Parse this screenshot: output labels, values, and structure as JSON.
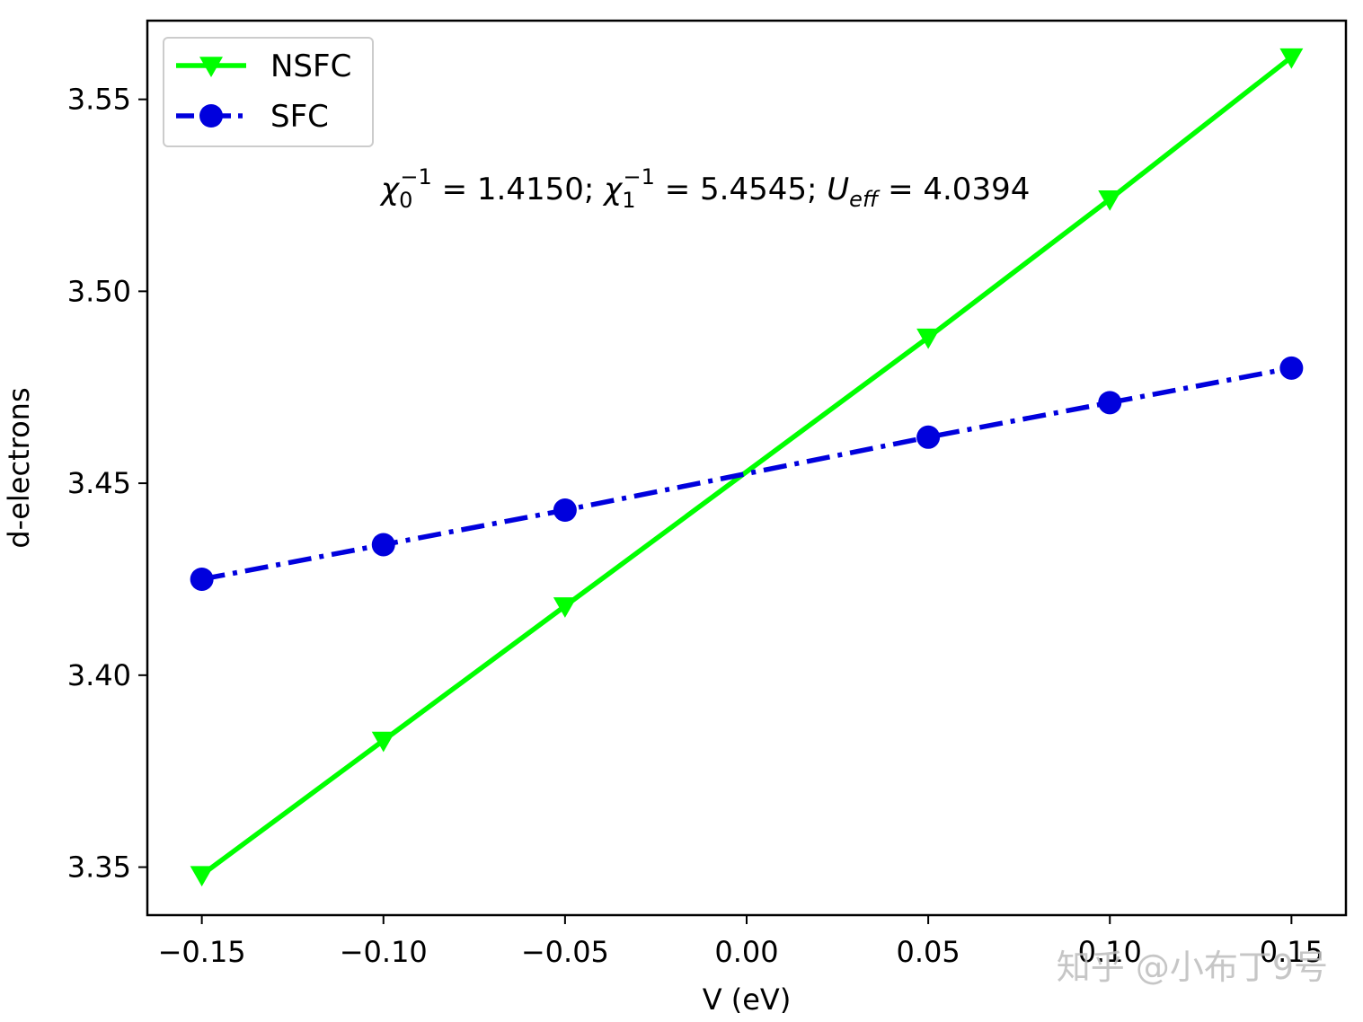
{
  "chart_data": {
    "type": "line",
    "x": [
      -0.15,
      -0.1,
      -0.05,
      0.05,
      0.1,
      0.15
    ],
    "series": [
      {
        "name": "NSFC",
        "values": [
          3.348,
          3.383,
          3.418,
          3.488,
          3.524,
          3.561
        ],
        "color": "#00ff00",
        "marker": "triangle-down",
        "linestyle": "solid"
      },
      {
        "name": "SFC",
        "values": [
          3.425,
          3.434,
          3.443,
          3.462,
          3.471,
          3.48
        ],
        "color": "#0000dd",
        "marker": "circle",
        "linestyle": "dashdot"
      }
    ],
    "xlabel": "V (eV)",
    "ylabel": "d-electrons",
    "xlim": [
      -0.165,
      0.165
    ],
    "ylim": [
      3.3375,
      3.5705
    ],
    "xticks": [
      -0.15,
      -0.1,
      -0.05,
      0.0,
      0.05,
      0.1,
      0.15
    ],
    "xtick_labels": [
      "−0.15",
      "−0.10",
      "−0.05",
      "0.00",
      "0.05",
      "0.10",
      "0.15"
    ],
    "yticks": [
      3.35,
      3.4,
      3.45,
      3.5,
      3.55
    ],
    "ytick_labels": [
      "3.35",
      "3.40",
      "3.45",
      "3.50",
      "3.55"
    ],
    "legend_position": "top-left",
    "grid": false,
    "annotation": {
      "chi0_symbol": "χ",
      "chi0_sub": "0",
      "chi0_sup": "−1",
      "chi0_value": " = 1.4150; ",
      "chi1_symbol": "χ",
      "chi1_sub": "1",
      "chi1_sup": "−1",
      "chi1_value": " = 5.4545; ",
      "ueff_symbol": "U",
      "ueff_sub": "eff",
      "ueff_value": " = 4.0394"
    }
  },
  "watermark": "知乎 @小布丁9号"
}
